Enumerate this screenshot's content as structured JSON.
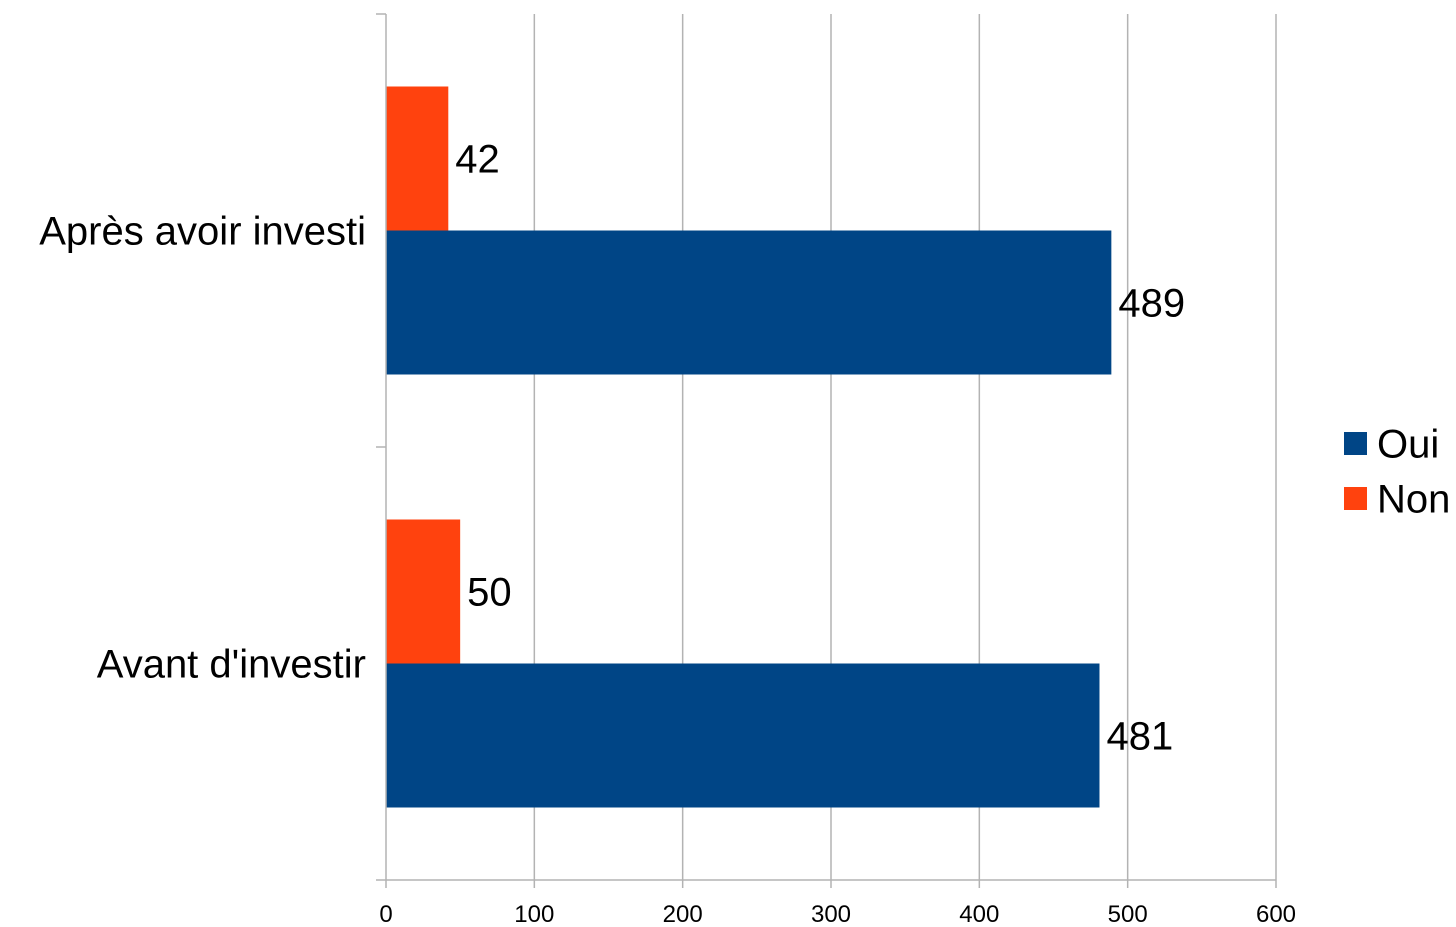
{
  "chart_data": {
    "type": "bar",
    "orientation": "horizontal",
    "categories": [
      "Avant d'investir",
      "Après avoir investi"
    ],
    "series": [
      {
        "name": "Oui",
        "color": "#004586",
        "values": [
          481,
          489
        ]
      },
      {
        "name": "Non",
        "color": "#ff420e",
        "values": [
          50,
          42
        ]
      }
    ],
    "data_labels": true,
    "x_ticks": [
      0,
      100,
      200,
      300,
      400,
      500,
      600
    ],
    "xlim": [
      0,
      600
    ],
    "grid": "vertical",
    "legend_position": "right",
    "title": "",
    "xlabel": "",
    "ylabel": ""
  }
}
